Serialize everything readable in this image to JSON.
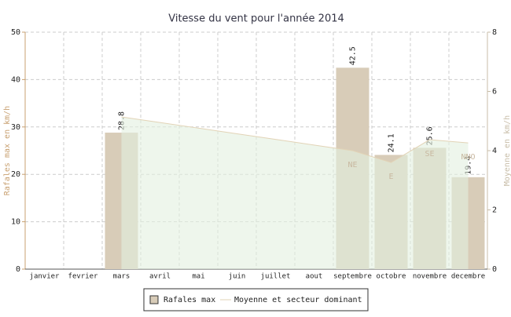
{
  "chart_data": {
    "type": "bar_area",
    "title": "Vitesse du vent pour l'année 2014",
    "y_label": "Rafales max en km/h",
    "y2_label": "Moyenne en km/h",
    "categories": [
      "janvier",
      "fevrier",
      "mars",
      "avril",
      "mai",
      "juin",
      "juillet",
      "aout",
      "septembre",
      "octobre",
      "novembre",
      "decembre"
    ],
    "series": [
      {
        "name": "Rafales max",
        "color": "#d8ccb8",
        "values": [
          null,
          null,
          28.8,
          null,
          null,
          null,
          null,
          null,
          42.5,
          24.1,
          25.6,
          19.4
        ]
      },
      {
        "name": "Moyenne et secteur dominant",
        "color": "#e2d3b6",
        "axis": "y2",
        "area_color": "#e3f0df",
        "values": [
          null,
          null,
          5.14,
          4.95,
          4.76,
          4.57,
          4.38,
          4.19,
          4.0,
          3.6,
          4.37,
          4.26
        ],
        "sectors": [
          null,
          null,
          null,
          null,
          null,
          null,
          null,
          null,
          "NE",
          "E",
          "SE",
          "NNO"
        ]
      }
    ],
    "ylim": [
      0,
      50
    ],
    "yticks": [
      0,
      10,
      20,
      30,
      40,
      50
    ],
    "y2lim": [
      0,
      8
    ],
    "y2ticks": [
      0,
      2,
      4,
      6,
      8
    ],
    "grid": true,
    "legend": "bottom"
  }
}
